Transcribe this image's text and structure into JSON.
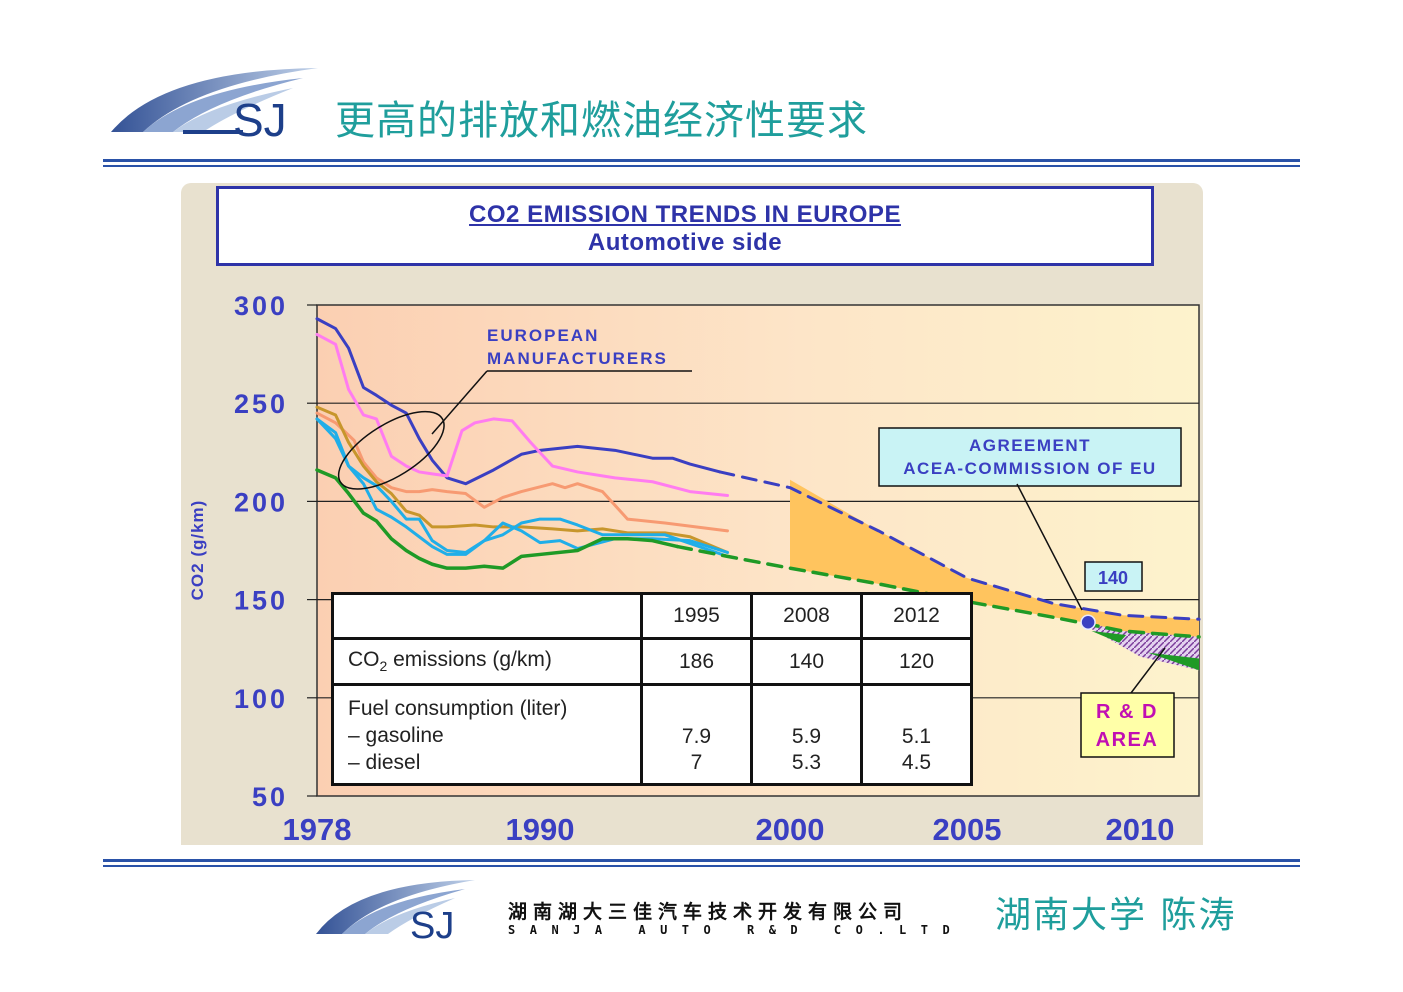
{
  "header": {
    "logo_text": "SJ",
    "title": "更高的排放和燃油经济性要求"
  },
  "chart_data": {
    "type": "line",
    "title": "CO2 EMISSION TRENDS IN EUROPE",
    "subtitle": "Automotive side",
    "ylabel": "CO2 (g/km)",
    "ylim": [
      50,
      300
    ],
    "yticks": [
      300,
      250,
      200,
      150,
      100,
      50
    ],
    "xlim": [
      1978,
      2011.5
    ],
    "xticks": [
      1978,
      1990,
      2000,
      2005,
      2010
    ],
    "grid": "horizontal",
    "colors": {
      "blue": "#3a3fc2",
      "magenta": "#ff7cf0",
      "salmon": "#f79a72",
      "olive": "#c7962c",
      "cyan": "#20aee8",
      "green": "#1f9a26",
      "band": "#ffc45e",
      "plot_left": "#fbcfb2",
      "plot_right": "#fdf3cc"
    },
    "series": [
      {
        "color": "blue",
        "x": [
          1978,
          1979,
          1979.7,
          1980.5,
          1981.2,
          1982,
          1982.8,
          1983.5,
          1984.2,
          1985,
          1986,
          1987.5,
          1989,
          1990,
          1991.5,
          1993,
          1994.5,
          1995.3,
          1996,
          1997.2
        ],
        "y": [
          293,
          288,
          278,
          258,
          254,
          249,
          245,
          232,
          221,
          212,
          209,
          216,
          224,
          226,
          228,
          226,
          222,
          222,
          219,
          215
        ]
      },
      {
        "color": "blue",
        "dashed": true,
        "x": [
          1997.2,
          2000,
          2002.5,
          2005,
          2007.5,
          2008.5,
          2009.5,
          2011.5
        ],
        "y": [
          215,
          207,
          185,
          161,
          148,
          145,
          142,
          140
        ]
      },
      {
        "color": "magenta",
        "x": [
          1978,
          1979,
          1979.7,
          1980.5,
          1981.2,
          1982,
          1982.8,
          1983.5,
          1984.2,
          1985,
          1985.8,
          1986.5,
          1987.5,
          1988.5,
          1989.5,
          1990.5,
          1991.5,
          1993,
          1994.5,
          1996,
          1997.5
        ],
        "y": [
          285,
          280,
          257,
          244,
          242,
          223,
          218,
          215,
          214,
          213,
          236,
          240,
          242,
          241,
          230,
          218,
          215,
          212,
          210,
          205,
          203
        ]
      },
      {
        "color": "salmon",
        "x": [
          1978,
          1979,
          1980,
          1980.5,
          1981.2,
          1982,
          1982.8,
          1983.5,
          1984.2,
          1985,
          1986,
          1987,
          1988,
          1989,
          1990.5,
          1991,
          1991.5,
          1992.5,
          1993.5,
          1995,
          1997.5
        ],
        "y": [
          245,
          240,
          231,
          220,
          212,
          207,
          205,
          205,
          206,
          205,
          204,
          197,
          202,
          205,
          209,
          207,
          209,
          205,
          191,
          189,
          185
        ]
      },
      {
        "color": "olive",
        "x": [
          1978,
          1979,
          1979.7,
          1980.5,
          1981.2,
          1982,
          1982.8,
          1983.5,
          1984.2,
          1985,
          1986.5,
          1987.5,
          1989,
          1990.5,
          1991.5,
          1992.5,
          1993.5,
          1995,
          1996,
          1997.5
        ],
        "y": [
          248,
          244,
          230,
          218,
          210,
          204,
          195,
          193,
          187,
          187,
          188,
          187,
          187,
          186,
          185,
          186,
          184,
          184,
          182,
          174
        ]
      },
      {
        "color": "cyan",
        "x": [
          1978,
          1979,
          1979.7,
          1980.5,
          1981.2,
          1982,
          1982.8,
          1983.5,
          1984.2,
          1985,
          1986,
          1987,
          1988,
          1989,
          1990,
          1990.8,
          1991.5,
          1993,
          1994.5,
          1996,
          1997.5
        ],
        "y": [
          242,
          232,
          218,
          212,
          208,
          200,
          191,
          191,
          180,
          175,
          174,
          180,
          189,
          185,
          179,
          180,
          176,
          181,
          181,
          180,
          174
        ]
      },
      {
        "color": "cyan",
        "x": [
          1978,
          1979,
          1979.7,
          1980.5,
          1981.2,
          1982,
          1982.8,
          1983.5,
          1984.2,
          1985,
          1986,
          1987,
          1988,
          1989,
          1990,
          1990.8,
          1991.5,
          1992.5,
          1993.5,
          1995,
          1997.5
        ],
        "y": [
          242,
          235,
          218,
          209,
          196,
          192,
          187,
          182,
          177,
          173,
          173,
          180,
          183,
          189,
          191,
          191,
          188,
          183,
          183,
          183,
          172
        ]
      },
      {
        "color": "green",
        "x": [
          1978,
          1979,
          1979.7,
          1980.5,
          1981.2,
          1982,
          1982.8,
          1983.5,
          1984.2,
          1985,
          1986,
          1987,
          1988,
          1989,
          1990,
          1991.5,
          1992.5,
          1993.5,
          1994.5,
          1995.5
        ],
        "y": [
          216,
          212,
          204,
          194,
          190,
          181,
          175,
          171,
          168,
          166,
          166,
          167,
          166,
          172,
          173,
          175,
          181,
          181,
          180,
          177
        ]
      },
      {
        "color": "green",
        "dashed": true,
        "x": [
          1995.5,
          1997.5,
          2000,
          2002.5,
          2005,
          2007.5,
          2009.5,
          2011.5
        ],
        "y": [
          177,
          172,
          166,
          158,
          149,
          141,
          134,
          131
        ]
      }
    ],
    "annotations": [
      {
        "text": "EUROPEAN",
        "x": 1983.5,
        "y": 278
      },
      {
        "text": "MANUFACTURERS",
        "x": 1983.5,
        "y": 266
      }
    ],
    "agreement_label": [
      "AGREEMENT",
      "ACEA-COMMISSION OF EU"
    ],
    "target_value_label": "140",
    "rd_label": [
      "R & D",
      "AREA"
    ],
    "table": {
      "headers": [
        "",
        "1995",
        "2008",
        "2012"
      ],
      "rows": [
        {
          "label": "CO₂ emissions (g/km)",
          "values": [
            "186",
            "140",
            "120"
          ]
        },
        {
          "label": "Fuel consumption (liter)",
          "values": [
            "",
            "",
            ""
          ]
        },
        {
          "label": "– gasoline",
          "values": [
            "7.9",
            "5.9",
            "5.1"
          ]
        },
        {
          "label": "– diesel",
          "values": [
            "7",
            "5.3",
            "4.5"
          ]
        }
      ]
    }
  },
  "footer": {
    "company_cn": "湖南湖大三佳汽车技术开发有限公司",
    "company_en": "SANJA AUTO R&D CO.LTD",
    "author": "湖南大学 陈涛"
  }
}
